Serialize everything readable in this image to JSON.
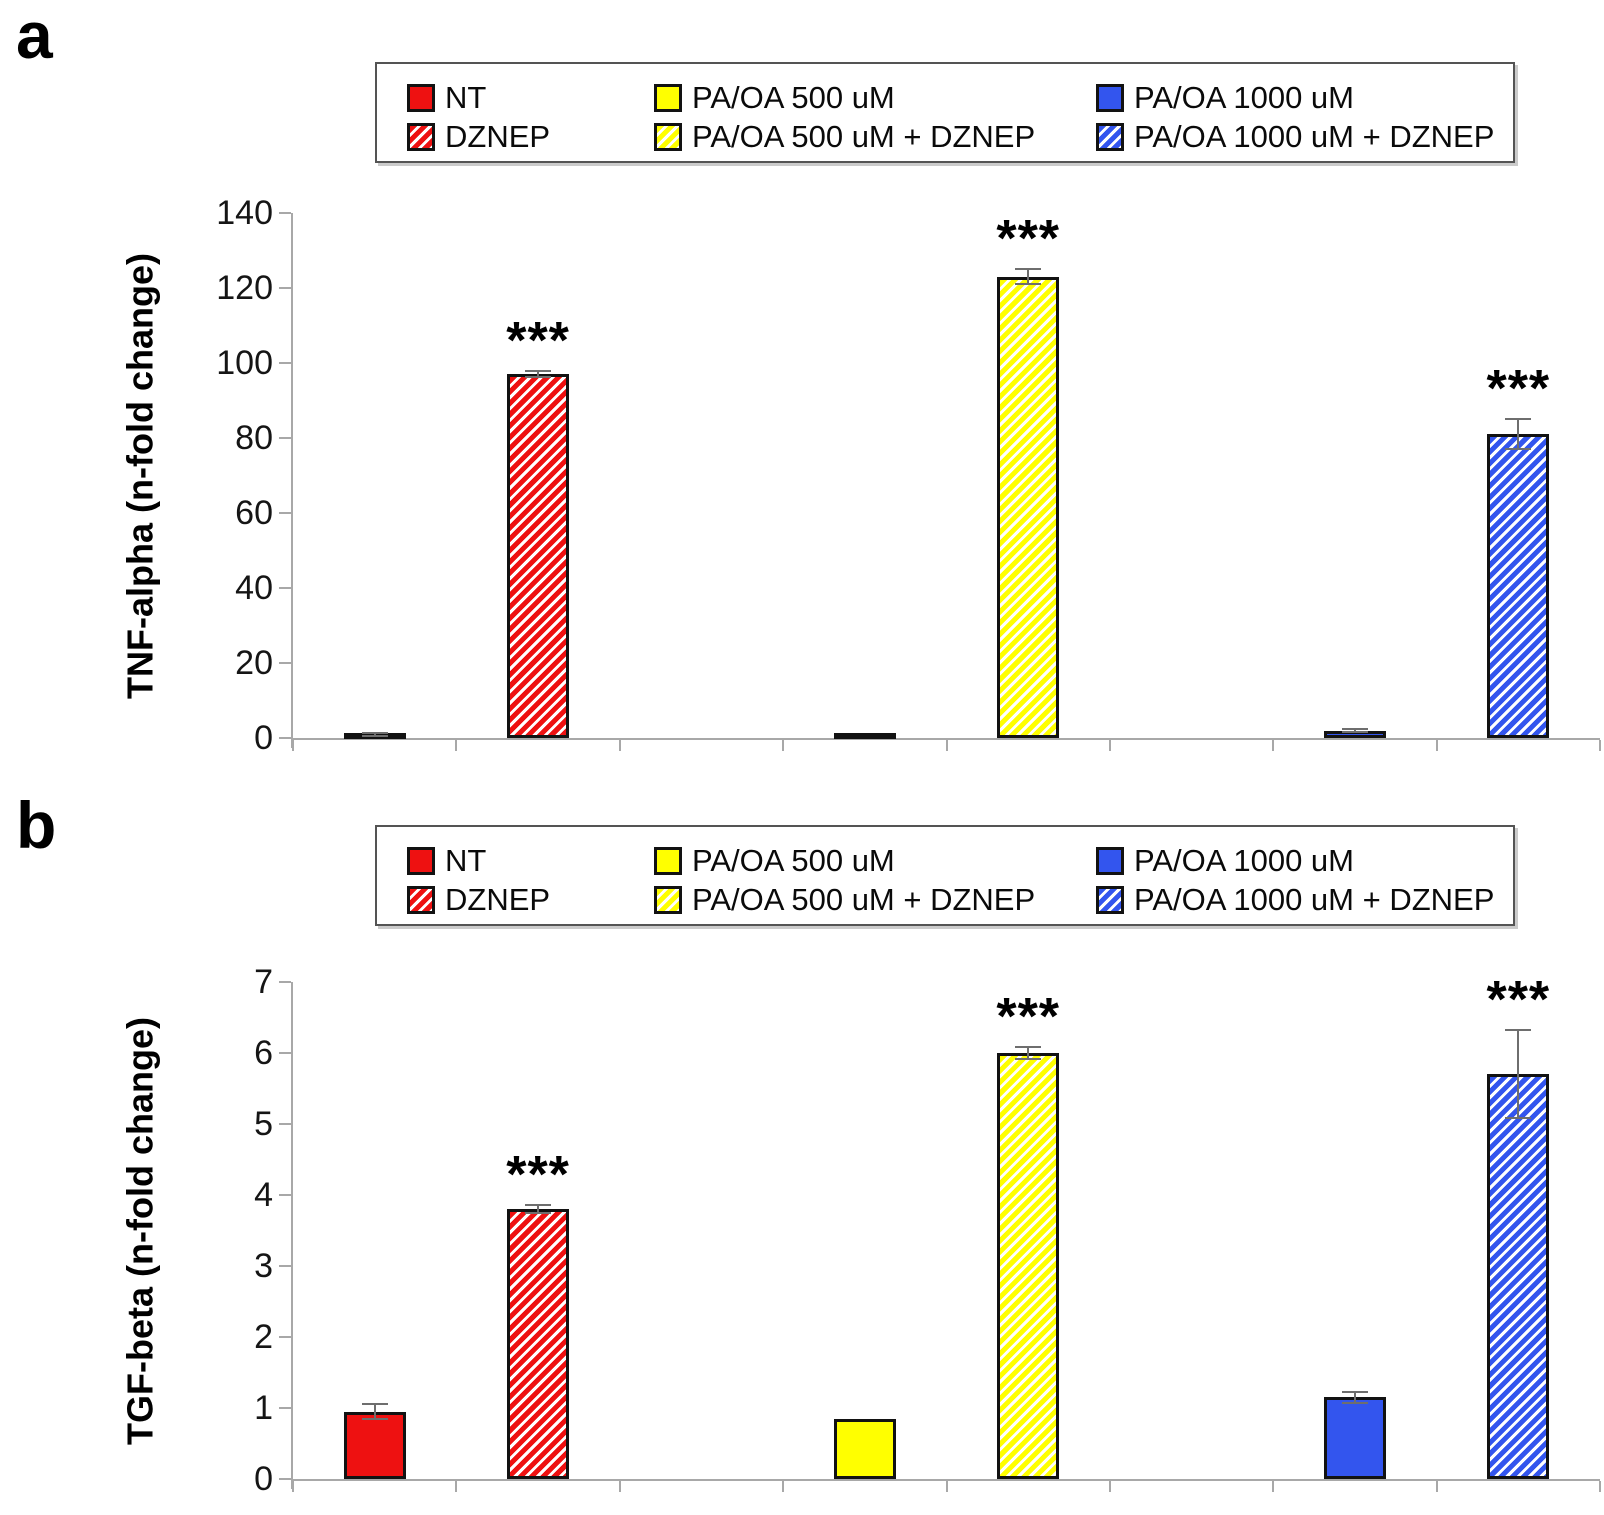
{
  "panel_labels": [
    "a",
    "b"
  ],
  "colors": {
    "red": "#ee1111",
    "yellow": "#ffff00",
    "blue": "#3355ee",
    "axis": "#a8a8a8",
    "error_bar": "#6e6e6e",
    "bar_border": "#121212",
    "hatch_gap": "#ffffff"
  },
  "legend": {
    "items": [
      {
        "label": "NT",
        "color": "red",
        "hatched": false
      },
      {
        "label": "DZNEP",
        "color": "red",
        "hatched": true
      },
      {
        "label": "PA/OA 500 uM",
        "color": "yellow",
        "hatched": false
      },
      {
        "label": "PA/OA 500 uM + DZNEP",
        "color": "yellow",
        "hatched": true
      },
      {
        "label": "PA/OA 1000 uM",
        "color": "blue",
        "hatched": false
      },
      {
        "label": "PA/OA 1000 uM + DZNEP",
        "color": "blue",
        "hatched": true
      }
    ]
  },
  "chart_data": [
    {
      "type": "bar",
      "panel": "a",
      "ylabel": "TNF-alpha (n-fold change)",
      "xlabel": "",
      "ylim": [
        0,
        140
      ],
      "yticks": [
        0,
        20,
        40,
        60,
        80,
        100,
        120,
        140
      ],
      "grid": false,
      "legend_position": "top",
      "n_slots": 8,
      "slots": [
        0,
        1,
        3,
        4,
        6,
        7
      ],
      "categories": [
        "NT",
        "DZNEP",
        "PA/OA 500 uM",
        "PA/OA 500 uM + DZNEP",
        "PA/OA 1000 uM",
        "PA/OA 1000 uM + DZNEP"
      ],
      "values": [
        1,
        97,
        0.7,
        123,
        2,
        81
      ],
      "errors": [
        0.4,
        0.8,
        0,
        2,
        0.4,
        4
      ],
      "significance": [
        "",
        "***",
        "",
        "***",
        "",
        "***"
      ],
      "bar_styles": [
        {
          "color": "red",
          "hatched": false
        },
        {
          "color": "red",
          "hatched": true
        },
        {
          "color": "yellow",
          "hatched": false
        },
        {
          "color": "yellow",
          "hatched": true
        },
        {
          "color": "blue",
          "hatched": false
        },
        {
          "color": "blue",
          "hatched": true
        }
      ]
    },
    {
      "type": "bar",
      "panel": "b",
      "ylabel": "TGF-beta (n-fold change)",
      "xlabel": "",
      "ylim": [
        0,
        7
      ],
      "yticks": [
        0,
        1,
        2,
        3,
        4,
        5,
        6,
        7
      ],
      "grid": false,
      "legend_position": "top",
      "n_slots": 8,
      "slots": [
        0,
        1,
        3,
        4,
        6,
        7
      ],
      "categories": [
        "NT",
        "DZNEP",
        "PA/OA 500 uM",
        "PA/OA 500 uM + DZNEP",
        "PA/OA 1000 uM",
        "PA/OA 1000 uM + DZNEP"
      ],
      "values": [
        0.95,
        3.8,
        0.85,
        6.0,
        1.15,
        5.7
      ],
      "errors": [
        0.1,
        0.06,
        0,
        0.08,
        0.08,
        0.62
      ],
      "significance": [
        "",
        "***",
        "",
        "***",
        "",
        "***"
      ],
      "bar_styles": [
        {
          "color": "red",
          "hatched": false
        },
        {
          "color": "red",
          "hatched": true
        },
        {
          "color": "yellow",
          "hatched": false
        },
        {
          "color": "yellow",
          "hatched": true
        },
        {
          "color": "blue",
          "hatched": false
        },
        {
          "color": "blue",
          "hatched": true
        }
      ]
    }
  ]
}
